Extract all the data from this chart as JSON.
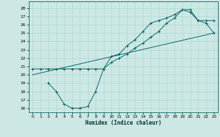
{
  "title": "",
  "xlabel": "Humidex (Indice chaleur)",
  "ylabel": "",
  "bg_color": "#cde8e4",
  "line_color": "#006060",
  "grid_color": "#a8d8d0",
  "xlim": [
    -0.5,
    23.5
  ],
  "ylim": [
    15.5,
    28.8
  ],
  "yticks": [
    16,
    17,
    18,
    19,
    20,
    21,
    22,
    23,
    24,
    25,
    26,
    27,
    28
  ],
  "xticks": [
    0,
    1,
    2,
    3,
    4,
    5,
    6,
    7,
    8,
    9,
    10,
    11,
    12,
    13,
    14,
    15,
    16,
    17,
    18,
    19,
    20,
    21,
    22,
    23
  ],
  "line1_x": [
    0,
    1,
    2,
    3,
    4,
    5,
    6,
    7,
    8,
    9,
    10,
    11,
    12,
    13,
    14,
    15,
    16,
    17,
    18,
    19,
    20,
    21,
    22,
    23
  ],
  "line1_y": [
    20.7,
    20.7,
    20.7,
    20.7,
    20.7,
    20.7,
    20.7,
    20.7,
    20.7,
    20.7,
    21.5,
    22.0,
    22.5,
    23.2,
    23.8,
    24.5,
    25.2,
    26.2,
    26.8,
    27.8,
    27.5,
    26.5,
    26.2,
    25.0
  ],
  "line2_x": [
    2,
    3,
    4,
    5,
    6,
    7,
    8,
    9,
    10,
    11,
    12,
    13,
    14,
    15,
    16,
    17,
    18,
    19,
    20,
    21,
    22,
    23
  ],
  "line2_y": [
    19.0,
    18.0,
    16.5,
    16.0,
    16.0,
    16.2,
    18.0,
    20.7,
    22.2,
    22.5,
    23.5,
    24.2,
    25.2,
    26.2,
    26.5,
    26.8,
    27.2,
    27.8,
    27.8,
    26.5,
    26.5,
    26.5
  ],
  "line3_x": [
    0,
    23
  ],
  "line3_y": [
    20.0,
    25.0
  ]
}
